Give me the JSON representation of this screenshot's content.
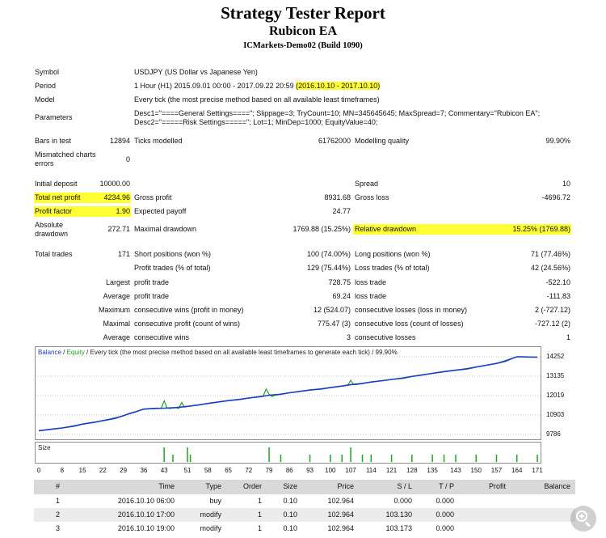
{
  "header": {
    "title": "Strategy Tester Report",
    "ea_name": "Rubicon EA",
    "server": "ICMarkets-Demo02 (Build 1090)"
  },
  "settings": {
    "symbol_label": "Symbol",
    "symbol_value": "USDJPY (US Dollar vs Japanese Yen)",
    "period_label": "Period",
    "period_value": "1 Hour (H1) 2015.09.01 00:00 - 2017.09.22 20:59",
    "period_highlight": "(2016.10.10 - 2017.10.10)",
    "model_label": "Model",
    "model_value": "Every tick (the most precise method based on all available least timeframes)",
    "parameters_label": "Parameters",
    "parameters_line1": "Desc1=\"====General Settings====\"; Slippage=3; TryCount=10; MN=345645645; MaxSpread=7; Commentary=\"Rubicon EA\";",
    "parameters_line2": "Desc2=\"=====Risk Settings=====\"; Lot=1; MinDep=1000; EquityValue=40;",
    "bars_label": "Bars in test",
    "bars_value": "12894",
    "ticks_label": "Ticks modelled",
    "ticks_value": "61762000",
    "quality_label": "Modelling quality",
    "quality_value": "99.90%",
    "mismatch_label_1": "Mismatched charts",
    "mismatch_label_2": "errors",
    "mismatch_value": "0"
  },
  "results": {
    "initial_deposit_label": "Initial deposit",
    "initial_deposit": "10000.00",
    "spread_label": "Spread",
    "spread": "10",
    "net_profit_label": "Total net profit",
    "net_profit": "4234.96",
    "gross_profit_label": "Gross profit",
    "gross_profit": "8931.68",
    "gross_loss_label": "Gross loss",
    "gross_loss": "-4696.72",
    "profit_factor_label": "Profit factor",
    "profit_factor": "1.90",
    "expected_payoff_label": "Expected payoff",
    "expected_payoff": "24.77",
    "abs_drawdown_label_1": "Absolute",
    "abs_drawdown_label_2": "drawdown",
    "abs_drawdown": "272.71",
    "max_drawdown_label": "Maximal drawdown",
    "max_drawdown": "1769.88 (15.25%)",
    "rel_drawdown_label": "Relative drawdown",
    "rel_drawdown": "15.25% (1769.88)",
    "total_trades_label": "Total trades",
    "total_trades": "171",
    "short_label": "Short positions (won %)",
    "short_value": "100 (74.00%)",
    "long_label": "Long positions (won %)",
    "long_value": "71 (77.46%)",
    "profit_trades_label": "Profit trades (% of total)",
    "profit_trades": "129 (75.44%)",
    "loss_trades_label": "Loss trades (% of total)",
    "loss_trades": "42 (24.56%)",
    "largest_label": "Largest",
    "largest_profit_label": "profit trade",
    "largest_profit": "728.75",
    "largest_loss_label": "loss trade",
    "largest_loss": "-522.10",
    "average_label": "Average",
    "average_profit_label": "profit trade",
    "average_profit": "69.24",
    "average_loss_label": "loss trade",
    "average_loss": "-111.83",
    "maximum_label": "Maximum",
    "max_cons_wins_label": "consecutive wins (profit in money)",
    "max_cons_wins": "12 (524.07)",
    "max_cons_losses_label": "consecutive losses (loss in money)",
    "max_cons_losses": "2 (-727.12)",
    "maximal_label": "Maximal",
    "maximal_cons_profit_label": "consecutive profit (count of wins)",
    "maximal_cons_profit": "775.47 (3)",
    "maximal_cons_loss_label": "consecutive loss (count of losses)",
    "maximal_cons_loss": "-727.12 (2)",
    "average2_label": "Average",
    "avg_cons_wins_label": "consecutive wins",
    "avg_cons_wins": "3",
    "avg_cons_losses_label": "consecutive losses",
    "avg_cons_losses": "1"
  },
  "chart_caption": {
    "balance": "Balance",
    "sep": " / ",
    "equity": "Equity",
    "rest": " / Every tick (the most precise method based on all available least timeframes to generate each tick) / 99.90%"
  },
  "size_label": "Size",
  "colors": {
    "balance": "#1a3cc8",
    "equity": "#22a322",
    "highlight": "#ffff33"
  },
  "chart_data": {
    "type": "line",
    "ylim": [
      9786,
      14252
    ],
    "y_ticks": [
      "14252",
      "13135",
      "12019",
      "10903",
      "9786"
    ],
    "x_ticks": [
      "0",
      "8",
      "15",
      "22",
      "29",
      "36",
      "43",
      "51",
      "58",
      "65",
      "72",
      "79",
      "86",
      "93",
      "100",
      "107",
      "114",
      "121",
      "128",
      "135",
      "143",
      "150",
      "157",
      "164",
      "171"
    ],
    "xlim": [
      0,
      171
    ],
    "series": [
      {
        "name": "Balance",
        "x": [
          0,
          4,
          8,
          12,
          15,
          19,
          22,
          26,
          29,
          31,
          33,
          36,
          40,
          43,
          47,
          51,
          55,
          58,
          62,
          65,
          69,
          72,
          76,
          79,
          83,
          86,
          90,
          93,
          97,
          100,
          104,
          107,
          111,
          114,
          118,
          121,
          125,
          128,
          132,
          135,
          139,
          143,
          147,
          150,
          154,
          157,
          160,
          162,
          164,
          166,
          168,
          171
        ],
        "values": [
          10000,
          10080,
          10160,
          10260,
          10380,
          10480,
          10580,
          10700,
          10860,
          10980,
          11080,
          11240,
          11290,
          11300,
          11330,
          11400,
          11490,
          11570,
          11660,
          11730,
          11800,
          11880,
          11960,
          12040,
          12100,
          12180,
          12270,
          12340,
          12400,
          12480,
          12570,
          12650,
          12720,
          12800,
          12880,
          12950,
          13020,
          13120,
          13220,
          13300,
          13400,
          13480,
          13560,
          13660,
          13780,
          13870,
          13990,
          14130,
          14250,
          14252,
          14240,
          14230
        ]
      },
      {
        "name": "Equity",
        "x": [
          0,
          8,
          15,
          22,
          29,
          36,
          42,
          43,
          44,
          45,
          47,
          48,
          49,
          50,
          51,
          55,
          58,
          65,
          72,
          77,
          78,
          79,
          80,
          81,
          86,
          93,
          100,
          106,
          107,
          108,
          109,
          114,
          121,
          128,
          135,
          143,
          150,
          157,
          164,
          171
        ],
        "values": [
          10000,
          10160,
          10380,
          10580,
          10860,
          11240,
          11280,
          11720,
          11300,
          11280,
          11330,
          11280,
          11620,
          11360,
          11400,
          11490,
          11570,
          11730,
          11880,
          12000,
          12400,
          12100,
          11960,
          12040,
          12180,
          12340,
          12480,
          12620,
          12900,
          12650,
          12650,
          12800,
          12950,
          13120,
          13300,
          13480,
          13660,
          13870,
          14250,
          14230
        ]
      }
    ],
    "size_bars": {
      "x": [
        43,
        46,
        51,
        52,
        79,
        83,
        93,
        100,
        104,
        107,
        111,
        114,
        121,
        128,
        135,
        139,
        143,
        150,
        157,
        164,
        171
      ],
      "values": [
        2,
        1,
        2,
        1,
        2,
        1,
        1,
        1,
        1,
        2,
        1,
        1,
        1,
        1,
        1,
        1,
        1,
        1,
        1,
        1,
        1
      ]
    }
  },
  "trades": {
    "columns": [
      "#",
      "Time",
      "Type",
      "Order",
      "Size",
      "Price",
      "S / L",
      "T / P",
      "Profit",
      "Balance"
    ],
    "rows": [
      [
        "1",
        "2016.10.10 06:00",
        "buy",
        "1",
        "0.10",
        "102.964",
        "0.000",
        "0.000",
        "",
        ""
      ],
      [
        "2",
        "2016.10.10 17:00",
        "modify",
        "1",
        "0.10",
        "102.964",
        "103.130",
        "0.000",
        "",
        ""
      ],
      [
        "3",
        "2016.10.10 19:00",
        "modify",
        "1",
        "0.10",
        "102.964",
        "103.173",
        "0.000",
        "",
        ""
      ]
    ]
  },
  "zoom_icon": "zoom-in-icon"
}
